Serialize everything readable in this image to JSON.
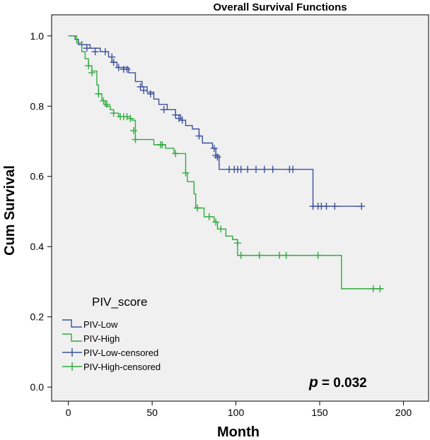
{
  "chart_data": {
    "type": "line",
    "title": "Overall Survival Functions",
    "xlabel": "Month",
    "ylabel": "Cum Survival",
    "xlim": [
      -10,
      215
    ],
    "ylim": [
      -0.04,
      1.06
    ],
    "x_ticks": [
      0,
      50,
      100,
      150,
      200
    ],
    "x_tick_labels": [
      "0",
      "50",
      "100",
      "150",
      "200"
    ],
    "y_ticks": [
      0.0,
      0.2,
      0.4,
      0.6,
      0.8,
      1.0
    ],
    "y_tick_labels": [
      "0.0",
      "0.2",
      "0.4",
      "0.6",
      "0.8",
      "1.0"
    ],
    "legend": {
      "title": "PIV_score",
      "position": "bottom-left",
      "entries": [
        "PIV-Low",
        "PIV-High",
        "PIV-Low-censored",
        "PIV-High-censored"
      ]
    },
    "annotation": {
      "p_symbol": "p",
      "text": "= 0.032"
    },
    "series": [
      {
        "name": "PIV-Low",
        "color": "#3a4f9c",
        "steps": [
          [
            0,
            1.0
          ],
          [
            4,
            0.99
          ],
          [
            6,
            0.975
          ],
          [
            13,
            0.965
          ],
          [
            19,
            0.955
          ],
          [
            24,
            0.94
          ],
          [
            26,
            0.925
          ],
          [
            29,
            0.91
          ],
          [
            36,
            0.895
          ],
          [
            40,
            0.87
          ],
          [
            44,
            0.855
          ],
          [
            47,
            0.84
          ],
          [
            51,
            0.82
          ],
          [
            54,
            0.805
          ],
          [
            59,
            0.79
          ],
          [
            64,
            0.775
          ],
          [
            67,
            0.76
          ],
          [
            70,
            0.745
          ],
          [
            74,
            0.735
          ],
          [
            78,
            0.715
          ],
          [
            80,
            0.695
          ],
          [
            86,
            0.68
          ],
          [
            88,
            0.66
          ],
          [
            90,
            0.62
          ],
          [
            146,
            0.515
          ],
          [
            176,
            0.515
          ]
        ],
        "censored": [
          [
            8,
            0.975
          ],
          [
            11,
            0.965
          ],
          [
            16,
            0.955
          ],
          [
            22,
            0.955
          ],
          [
            26,
            0.94
          ],
          [
            27,
            0.925
          ],
          [
            30,
            0.91
          ],
          [
            33,
            0.905
          ],
          [
            35,
            0.905
          ],
          [
            43,
            0.855
          ],
          [
            45,
            0.845
          ],
          [
            49,
            0.835
          ],
          [
            57,
            0.79
          ],
          [
            64,
            0.775
          ],
          [
            66,
            0.765
          ],
          [
            68,
            0.76
          ],
          [
            78,
            0.715
          ],
          [
            87,
            0.68
          ],
          [
            88,
            0.66
          ],
          [
            89,
            0.655
          ],
          [
            96,
            0.62
          ],
          [
            99,
            0.62
          ],
          [
            101,
            0.62
          ],
          [
            103,
            0.62
          ],
          [
            107,
            0.62
          ],
          [
            112,
            0.62
          ],
          [
            117,
            0.62
          ],
          [
            122,
            0.62
          ],
          [
            132,
            0.62
          ],
          [
            134,
            0.62
          ],
          [
            146,
            0.515
          ],
          [
            149,
            0.515
          ],
          [
            151,
            0.515
          ],
          [
            154,
            0.515
          ],
          [
            159,
            0.515
          ],
          [
            175,
            0.515
          ]
        ]
      },
      {
        "name": "PIV-High",
        "color": "#2eab3e",
        "steps": [
          [
            0,
            1.0
          ],
          [
            5,
            0.98
          ],
          [
            8,
            0.955
          ],
          [
            10,
            0.935
          ],
          [
            12,
            0.915
          ],
          [
            14,
            0.9
          ],
          [
            17,
            0.86
          ],
          [
            18,
            0.835
          ],
          [
            20,
            0.815
          ],
          [
            22,
            0.8
          ],
          [
            25,
            0.79
          ],
          [
            27,
            0.78
          ],
          [
            30,
            0.77
          ],
          [
            37,
            0.765
          ],
          [
            38,
            0.76
          ],
          [
            40,
            0.705
          ],
          [
            51,
            0.69
          ],
          [
            58,
            0.68
          ],
          [
            63,
            0.665
          ],
          [
            70,
            0.61
          ],
          [
            71,
            0.585
          ],
          [
            75,
            0.55
          ],
          [
            76,
            0.51
          ],
          [
            81,
            0.485
          ],
          [
            87,
            0.47
          ],
          [
            89,
            0.45
          ],
          [
            94,
            0.43
          ],
          [
            98,
            0.42
          ],
          [
            101,
            0.375
          ],
          [
            163,
            0.28
          ],
          [
            188,
            0.28
          ]
        ],
        "censored": [
          [
            12,
            0.915
          ],
          [
            14,
            0.895
          ],
          [
            18,
            0.835
          ],
          [
            21,
            0.815
          ],
          [
            23,
            0.805
          ],
          [
            27,
            0.78
          ],
          [
            31,
            0.77
          ],
          [
            33,
            0.77
          ],
          [
            35,
            0.77
          ],
          [
            37,
            0.765
          ],
          [
            39,
            0.73
          ],
          [
            40,
            0.705
          ],
          [
            55,
            0.69
          ],
          [
            56,
            0.69
          ],
          [
            64,
            0.665
          ],
          [
            70,
            0.61
          ],
          [
            77,
            0.51
          ],
          [
            84,
            0.485
          ],
          [
            88,
            0.47
          ],
          [
            91,
            0.45
          ],
          [
            101,
            0.41
          ],
          [
            103,
            0.375
          ],
          [
            114,
            0.375
          ],
          [
            126,
            0.375
          ],
          [
            130,
            0.375
          ],
          [
            149,
            0.375
          ],
          [
            182,
            0.28
          ],
          [
            186,
            0.28
          ]
        ]
      }
    ]
  }
}
